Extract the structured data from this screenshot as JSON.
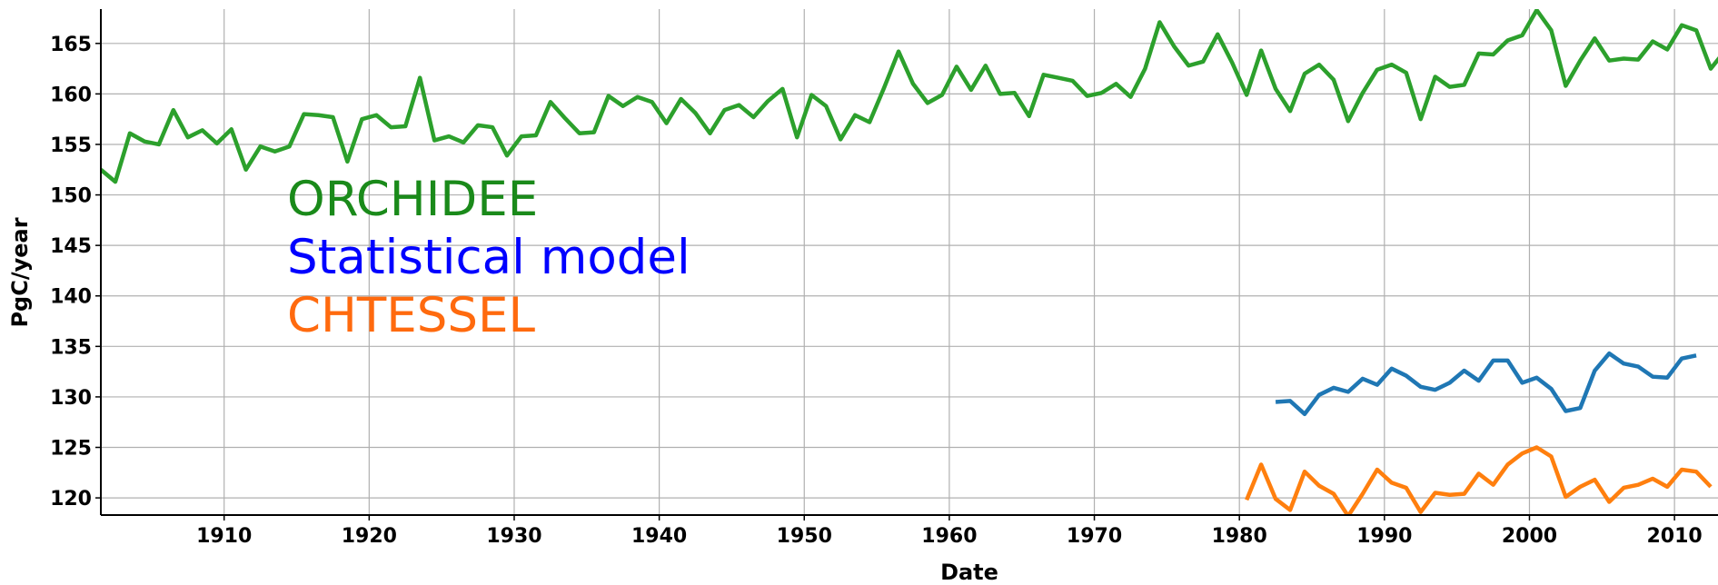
{
  "chart_data": {
    "type": "line",
    "xlabel": "Date",
    "ylabel": "PgC/year",
    "xlim": [
      1901.5,
      2013
    ],
    "ylim": [
      118.3,
      168.4
    ],
    "xticks": [
      1910,
      1920,
      1930,
      1940,
      1950,
      1960,
      1970,
      1980,
      1990,
      2000,
      2010
    ],
    "yticks": [
      120,
      125,
      130,
      135,
      140,
      145,
      150,
      155,
      160,
      165
    ],
    "grid": true,
    "series": [
      {
        "name": "ORCHIDEE",
        "color": "#2ca02c",
        "label_color": "#1a8a1a",
        "x": [
          1901.5,
          1902.5,
          1903.5,
          1904.5,
          1905.5,
          1906.5,
          1907.5,
          1908.5,
          1909.5,
          1910.5,
          1911.5,
          1912.5,
          1913.5,
          1914.5,
          1915.5,
          1916.5,
          1917.5,
          1918.5,
          1919.5,
          1920.5,
          1921.5,
          1922.5,
          1923.5,
          1924.5,
          1925.5,
          1926.5,
          1927.5,
          1928.5,
          1929.5,
          1930.5,
          1931.5,
          1932.5,
          1933.5,
          1934.5,
          1935.5,
          1936.5,
          1937.5,
          1938.5,
          1939.5,
          1940.5,
          1941.5,
          1942.5,
          1943.5,
          1944.5,
          1945.5,
          1946.5,
          1947.5,
          1948.5,
          1949.5,
          1950.5,
          1951.5,
          1952.5,
          1953.5,
          1954.5,
          1955.5,
          1956.5,
          1957.5,
          1958.5,
          1959.5,
          1960.5,
          1961.5,
          1962.5,
          1963.5,
          1964.5,
          1965.5,
          1966.5,
          1967.5,
          1968.5,
          1969.5,
          1970.5,
          1971.5,
          1972.5,
          1973.5,
          1974.5,
          1975.5,
          1976.5,
          1977.5,
          1978.5,
          1979.5,
          1980.5,
          1981.5,
          1982.5,
          1983.5,
          1984.5,
          1985.5,
          1986.5,
          1987.5,
          1988.5,
          1989.5,
          1990.5,
          1991.5,
          1992.5,
          1993.5,
          1994.5,
          1995.5,
          1996.5,
          1997.5,
          1998.5,
          1999.5,
          2000.5,
          2001.5,
          2002.5,
          2003.5,
          2004.5,
          2005.5,
          2006.5,
          2007.5,
          2008.5,
          2009.5,
          2010.5,
          2011.5,
          2012.5,
          2013.5
        ],
        "values": [
          152.5,
          151.3,
          156.1,
          155.3,
          155.0,
          158.4,
          155.7,
          156.4,
          155.1,
          156.5,
          152.5,
          154.8,
          154.3,
          154.8,
          158.0,
          157.9,
          157.7,
          153.3,
          157.5,
          157.9,
          156.7,
          156.8,
          161.6,
          155.4,
          155.8,
          155.2,
          156.9,
          156.7,
          153.9,
          155.8,
          155.9,
          159.2,
          157.6,
          156.1,
          156.2,
          159.8,
          158.8,
          159.7,
          159.2,
          157.1,
          159.5,
          158.1,
          156.1,
          158.4,
          158.9,
          157.7,
          159.3,
          160.5,
          155.7,
          159.9,
          158.8,
          155.5,
          157.9,
          157.2,
          160.6,
          164.2,
          161.0,
          159.1,
          159.9,
          162.7,
          160.4,
          162.8,
          160.0,
          160.1,
          157.8,
          161.9,
          161.6,
          161.3,
          159.8,
          160.1,
          161.0,
          159.7,
          162.5,
          167.1,
          164.7,
          162.8,
          163.2,
          165.9,
          163.1,
          159.9,
          164.3,
          160.5,
          158.3,
          162.0,
          162.9,
          161.4,
          157.3,
          160.1,
          162.4,
          162.9,
          162.1,
          157.5,
          161.7,
          160.7,
          160.9,
          164.0,
          163.9,
          165.3,
          165.8,
          168.3,
          166.3,
          160.8,
          163.3,
          165.5,
          163.3,
          163.5,
          163.4,
          165.2,
          164.4,
          166.8,
          166.3,
          162.5,
          164.3
        ]
      },
      {
        "name": "Statistical model",
        "color": "#1f77b4",
        "label_color": "#0000ff",
        "x": [
          1982.5,
          1983.5,
          1984.5,
          1985.5,
          1986.5,
          1987.5,
          1988.5,
          1989.5,
          1990.5,
          1991.5,
          1992.5,
          1993.5,
          1994.5,
          1995.5,
          1996.5,
          1997.5,
          1998.5,
          1999.5,
          2000.5,
          2001.5,
          2002.5,
          2003.5,
          2004.5,
          2005.5,
          2006.5,
          2007.5,
          2008.5,
          2009.5,
          2010.5,
          2011.5
        ],
        "values": [
          129.5,
          129.6,
          128.3,
          130.2,
          130.9,
          130.5,
          131.8,
          131.2,
          132.8,
          132.1,
          131.0,
          130.7,
          131.4,
          132.6,
          131.6,
          133.6,
          133.6,
          131.4,
          131.9,
          130.8,
          128.6,
          128.9,
          132.6,
          134.3,
          133.3,
          133.0,
          132.0,
          131.9,
          133.8,
          134.1
        ]
      },
      {
        "name": "CHTESSEL",
        "color": "#ff7f0e",
        "label_color": "#ff6a0e",
        "x": [
          1980.5,
          1981.5,
          1982.5,
          1983.5,
          1984.5,
          1985.5,
          1986.5,
          1987.5,
          1988.5,
          1989.5,
          1990.5,
          1991.5,
          1992.5,
          1993.5,
          1994.5,
          1995.5,
          1996.5,
          1997.5,
          1998.5,
          1999.5,
          2000.5,
          2001.5,
          2002.5,
          2003.5,
          2004.5,
          2005.5,
          2006.5,
          2007.5,
          2008.5,
          2009.5,
          2010.5,
          2011.5,
          2012.5
        ],
        "values": [
          119.8,
          123.3,
          119.9,
          118.8,
          122.6,
          121.2,
          120.4,
          118.2,
          120.4,
          122.8,
          121.5,
          121.0,
          118.6,
          120.5,
          120.3,
          120.4,
          122.4,
          121.3,
          123.3,
          124.4,
          125.0,
          124.1,
          120.1,
          121.1,
          121.8,
          119.6,
          121.0,
          121.3,
          121.9,
          121.1,
          122.8,
          122.6,
          121.1
        ]
      }
    ]
  }
}
